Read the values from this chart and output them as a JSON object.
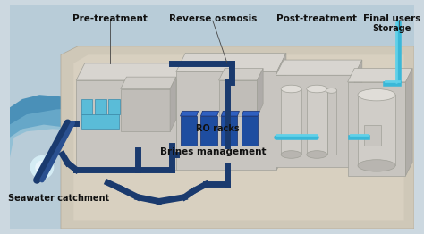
{
  "bg_color": "#ccd8e0",
  "ocean_color_dark": "#4a90b8",
  "ocean_color_light": "#7ab8d4",
  "land_color": "#cfc8b8",
  "land_inner": "#d8d0c0",
  "platform_color": "#c8c0b0",
  "building_face": "#d0cdc8",
  "building_top": "#e0ddd8",
  "building_side": "#b8b5b0",
  "compound_face": "#c8c5c0",
  "compound_top": "#dedad6",
  "compound_side": "#b0ada8",
  "pipe_dark": "#1a3a6e",
  "pipe_light": "#3ab8d8",
  "pipe_light2": "#60d0e8",
  "rack_color": "#1e4da0",
  "pool_color": "#5abcd8",
  "labels": {
    "pre_treatment": "Pre-treatment",
    "reverse_osmosis": "Reverse osmosis",
    "ro_racks": "RO racks",
    "post_treatment": "Post-treatment",
    "final_users": "Final users",
    "storage": "Storage",
    "brines": "Brines management",
    "seawater": "Seawater catchment"
  },
  "figsize": [
    4.74,
    2.62
  ],
  "dpi": 100
}
